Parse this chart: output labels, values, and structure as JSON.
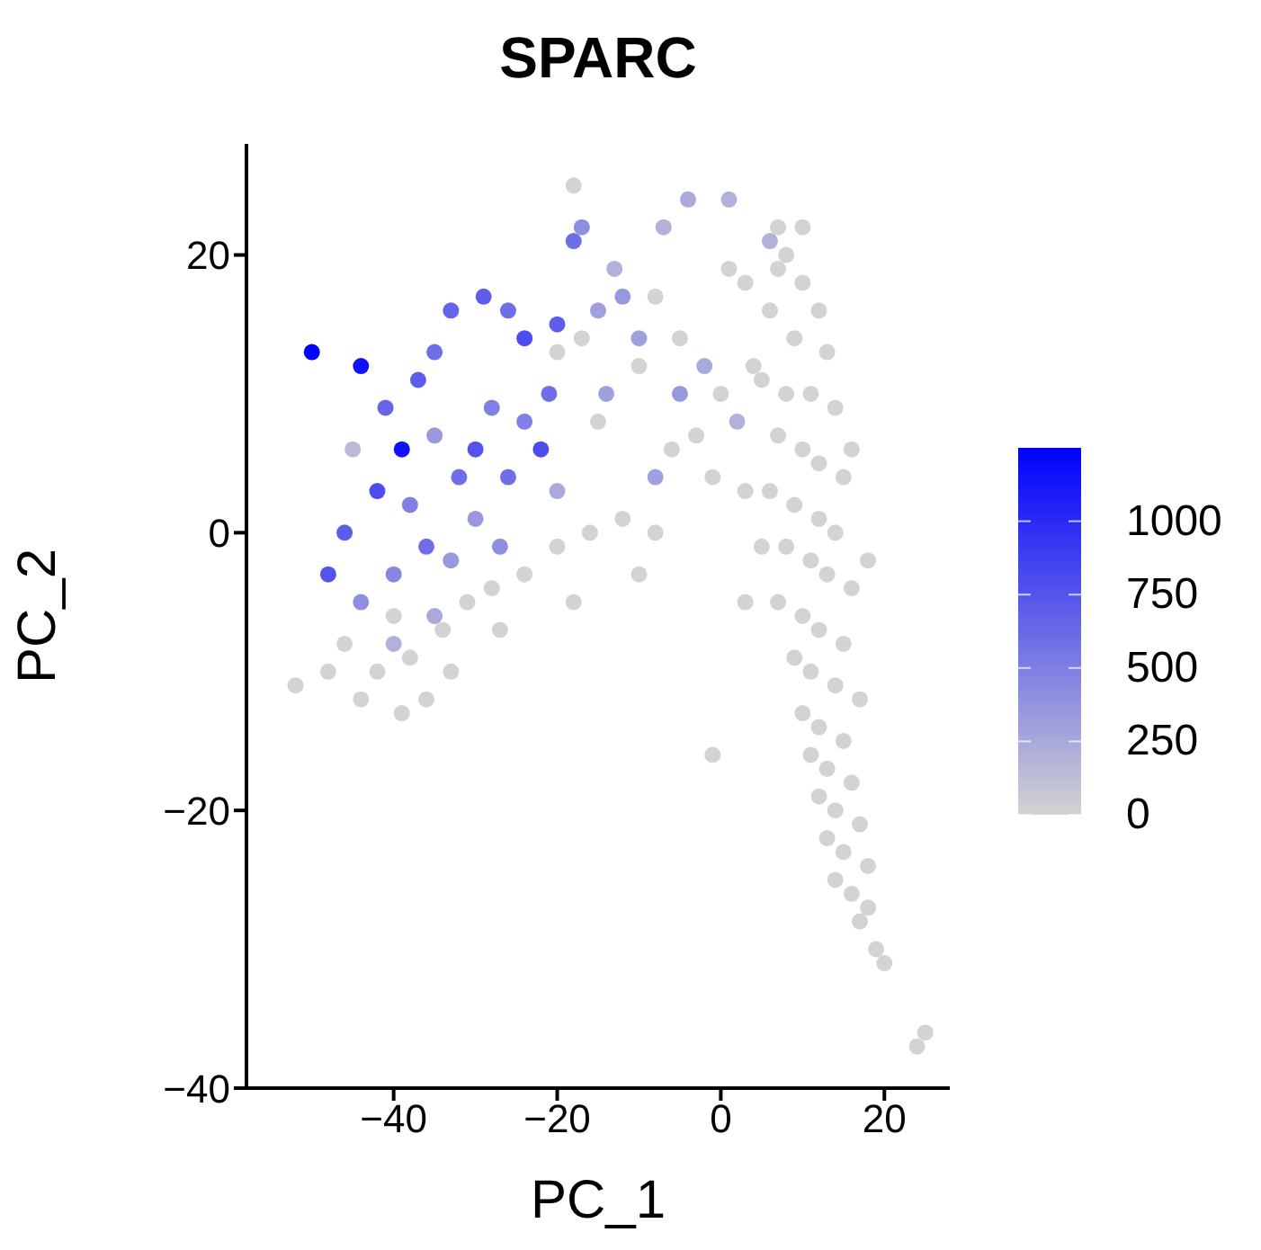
{
  "chart_data": {
    "type": "scatter",
    "title": "SPARC",
    "xlabel": "PC_1",
    "ylabel": "PC_2",
    "xlim": [
      -58,
      28
    ],
    "ylim": [
      -40,
      28
    ],
    "xticks": [
      -40,
      -20,
      0,
      20
    ],
    "yticks": [
      -40,
      -20,
      0,
      20
    ],
    "grid": false,
    "marker": "circle",
    "clim": [
      0,
      1250
    ],
    "cticks": [
      0,
      250,
      500,
      750,
      1000
    ],
    "x": [
      -52,
      -46,
      -42,
      -38,
      -36,
      -44,
      -40,
      -34,
      -31,
      -28,
      -24,
      -20,
      -16,
      -12,
      -8,
      -10,
      -18,
      -27,
      -39,
      -48,
      -33,
      -15,
      -10,
      -5,
      -3,
      -6,
      0,
      4,
      3,
      -1,
      -17,
      -8,
      -20,
      8,
      10,
      12,
      6,
      9,
      13,
      5,
      8,
      11,
      14,
      7,
      10,
      12,
      15,
      6,
      9,
      12,
      14,
      8,
      11,
      13,
      16,
      7,
      10,
      12,
      15,
      9,
      11,
      14,
      17,
      10,
      12,
      15,
      11,
      13,
      16,
      12,
      14,
      17,
      13,
      15,
      18,
      14,
      16,
      18,
      17,
      19,
      20,
      25,
      24,
      -1,
      16,
      18,
      5,
      3,
      7,
      1,
      3,
      10,
      7,
      -18,
      -4,
      1,
      6,
      -7,
      -13,
      -45,
      -42,
      -46,
      -48,
      -41,
      -37,
      -35,
      -33,
      -29,
      -26,
      -24,
      -20,
      -18,
      -17,
      -35,
      -32,
      -30,
      -28,
      -24,
      -21,
      -22,
      -26,
      -38,
      -36,
      -40,
      -44,
      -30,
      -27,
      -33,
      -15,
      -12,
      -10,
      -5,
      -8,
      -2,
      2,
      -14,
      -40,
      -35,
      -20,
      -50,
      -44,
      -39
    ],
    "values": [
      -11,
      -8,
      -10,
      -9,
      -12,
      -12,
      -6,
      -7,
      -5,
      -4,
      -3,
      -1,
      0,
      1,
      0,
      -3,
      -5,
      -7,
      -13,
      -10,
      -10,
      8,
      12,
      14,
      7,
      6,
      10,
      12,
      3,
      4,
      14,
      17,
      13,
      20,
      18,
      16,
      16,
      14,
      13,
      11,
      10,
      10,
      9,
      7,
      6,
      5,
      4,
      3,
      2,
      1,
      0,
      -1,
      -2,
      -3,
      -4,
      -5,
      -6,
      -7,
      -8,
      -9,
      -10,
      -11,
      -12,
      -13,
      -14,
      -15,
      -16,
      -17,
      -18,
      -19,
      -20,
      -21,
      -22,
      -23,
      -24,
      -25,
      -26,
      -27,
      -28,
      -30,
      -31,
      -36,
      -37,
      -16,
      6,
      -2,
      -1,
      -5,
      22,
      19,
      18,
      22,
      19,
      25,
      24,
      24,
      21,
      22,
      19,
      6,
      3,
      0,
      -3,
      9,
      11,
      13,
      16,
      17,
      16,
      14,
      15,
      21,
      22,
      7,
      4,
      6,
      9,
      8,
      10,
      6,
      4,
      2,
      -1,
      -3,
      -5,
      1,
      -1,
      -2,
      16,
      17,
      14,
      10,
      4,
      12,
      8,
      10,
      -8,
      -6,
      3,
      13,
      12,
      6
    ],
    "cvalues": [
      0,
      0,
      0,
      0,
      0,
      0,
      0,
      0,
      0,
      0,
      0,
      0,
      0,
      0,
      0,
      0,
      0,
      0,
      0,
      0,
      0,
      0,
      0,
      0,
      0,
      0,
      0,
      0,
      0,
      0,
      0,
      0,
      0,
      0,
      0,
      0,
      0,
      0,
      0,
      0,
      0,
      0,
      0,
      0,
      0,
      0,
      0,
      0,
      0,
      0,
      0,
      0,
      0,
      0,
      0,
      0,
      0,
      0,
      0,
      0,
      0,
      0,
      0,
      0,
      0,
      0,
      0,
      0,
      0,
      0,
      0,
      0,
      0,
      0,
      0,
      0,
      0,
      0,
      0,
      0,
      0,
      0,
      0,
      0,
      0,
      0,
      0,
      0,
      0,
      0,
      0,
      0,
      0,
      0,
      250,
      200,
      200,
      200,
      200,
      150,
      800,
      700,
      750,
      650,
      700,
      600,
      650,
      700,
      600,
      800,
      700,
      600,
      400,
      350,
      600,
      750,
      500,
      500,
      600,
      800,
      600,
      500,
      600,
      450,
      400,
      350,
      400,
      350,
      300,
      350,
      300,
      350,
      300,
      250,
      200,
      300,
      200,
      250,
      250,
      1250,
      1150,
      1150
    ]
  }
}
